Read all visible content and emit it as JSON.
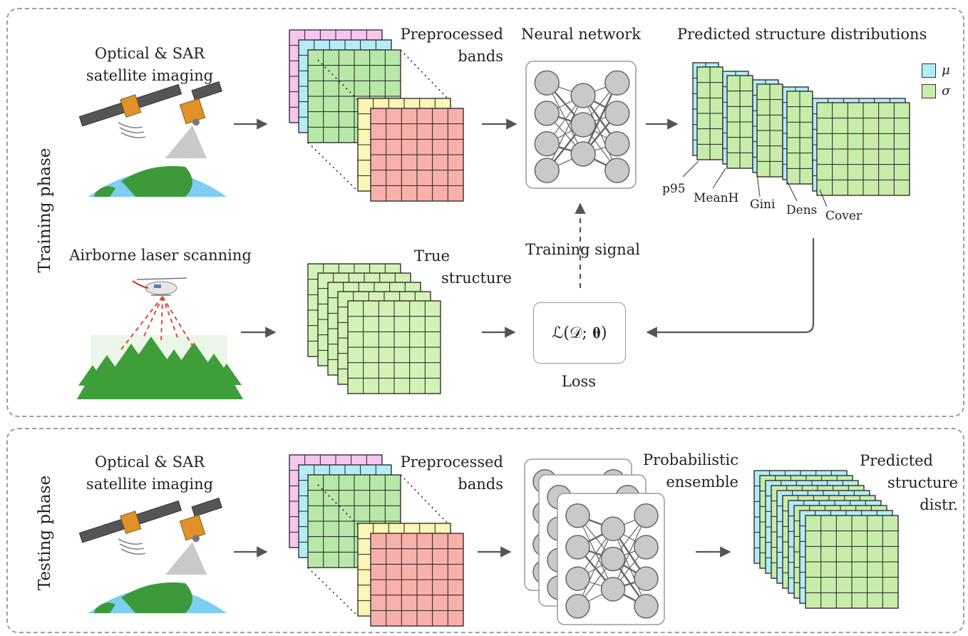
{
  "phases": {
    "training": "Training phase",
    "testing": "Testing phase"
  },
  "labels": {
    "optical_sar_train": [
      "Optical & SAR",
      "satellite imaging"
    ],
    "preprocessed_train": [
      "Preprocessed",
      "bands"
    ],
    "neural_network": "Neural network",
    "predicted_distributions": "Predicted structure distributions",
    "airborne": "Airborne laser scanning",
    "true_structure": [
      "True",
      "structure"
    ],
    "training_signal": "Training signal",
    "loss_formula": "ℒ(𝒟; 𝛉)",
    "loss": "Loss",
    "optical_sar_test": [
      "Optical & SAR",
      "satellite imaging"
    ],
    "preprocessed_test": [
      "Preprocessed",
      "bands"
    ],
    "ensemble": [
      "Probabilistic",
      "ensemble"
    ],
    "predicted_test": [
      "Predicted",
      "structure",
      "distr."
    ]
  },
  "metrics": [
    "p95",
    "MeanH",
    "Gini",
    "Dens",
    "Cover"
  ],
  "legend": [
    {
      "symbol": "μ",
      "color": "#b3ecf5"
    },
    {
      "symbol": "σ",
      "color": "#c8ecaa"
    }
  ],
  "colors": {
    "band_pink": "#f7c6f0",
    "band_cyan": "#b3ecf5",
    "band_green": "#b7e8a8",
    "band_yellow": "#fdf6b6",
    "band_red": "#f8b0ab",
    "mu": "#b3ecf5",
    "sigma": "#c8ecaa",
    "true_green": "#d3f2b5",
    "node": "#c9c9c9",
    "tree": "#3e9e3a",
    "ocean": "#7ccff0",
    "land": "#3d9a3a"
  }
}
